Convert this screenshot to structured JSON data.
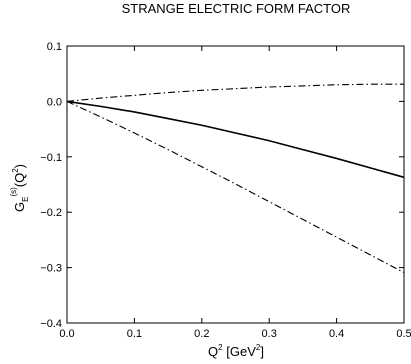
{
  "chart_data": {
    "type": "line",
    "title": "STRANGE ELECTRIC FORM FACTOR",
    "xlabel": {
      "base": "Q",
      "sup": "2",
      "unit_open": " [GeV",
      "unit_sup": "2",
      "unit_close": "]"
    },
    "ylabel": {
      "base": "G",
      "sub": "E",
      "sup": "(s)",
      "arg_open": "(Q",
      "arg_sup": "2",
      "arg_close": ")"
    },
    "xlim": [
      0.0,
      0.5
    ],
    "ylim": [
      -0.4,
      0.1
    ],
    "xticks": [
      0.0,
      0.1,
      0.2,
      0.3,
      0.4,
      0.5
    ],
    "xtick_labels": [
      "0.0",
      "0.1",
      "0.2",
      "0.3",
      "0.4",
      "0.5"
    ],
    "yticks": [
      0.1,
      0.0,
      -0.1,
      -0.2,
      -0.3,
      -0.4
    ],
    "ytick_labels": [
      "0.1",
      "0.0",
      "−0.1",
      "−0.2",
      "−0.3",
      "−0.4"
    ],
    "grid": false,
    "series": [
      {
        "style": "solid",
        "x": [
          0.0,
          0.05,
          0.1,
          0.15,
          0.2,
          0.25,
          0.3,
          0.35,
          0.4,
          0.45,
          0.5
        ],
        "y": [
          0.0,
          -0.009,
          -0.019,
          -0.031,
          -0.043,
          -0.057,
          -0.071,
          -0.087,
          -0.103,
          -0.12,
          -0.137
        ]
      },
      {
        "style": "dash-dot",
        "x": [
          0.0,
          0.05,
          0.1,
          0.15,
          0.2,
          0.25,
          0.3,
          0.35,
          0.4,
          0.45,
          0.5
        ],
        "y": [
          0.0,
          0.006,
          0.011,
          0.016,
          0.02,
          0.023,
          0.026,
          0.028,
          0.03,
          0.031,
          0.031
        ]
      },
      {
        "style": "dash-dot",
        "x": [
          0.0,
          0.05,
          0.1,
          0.15,
          0.2,
          0.25,
          0.3,
          0.35,
          0.4,
          0.45,
          0.5
        ],
        "y": [
          0.0,
          -0.028,
          -0.057,
          -0.087,
          -0.118,
          -0.149,
          -0.181,
          -0.213,
          -0.245,
          -0.277,
          -0.309
        ]
      }
    ]
  }
}
